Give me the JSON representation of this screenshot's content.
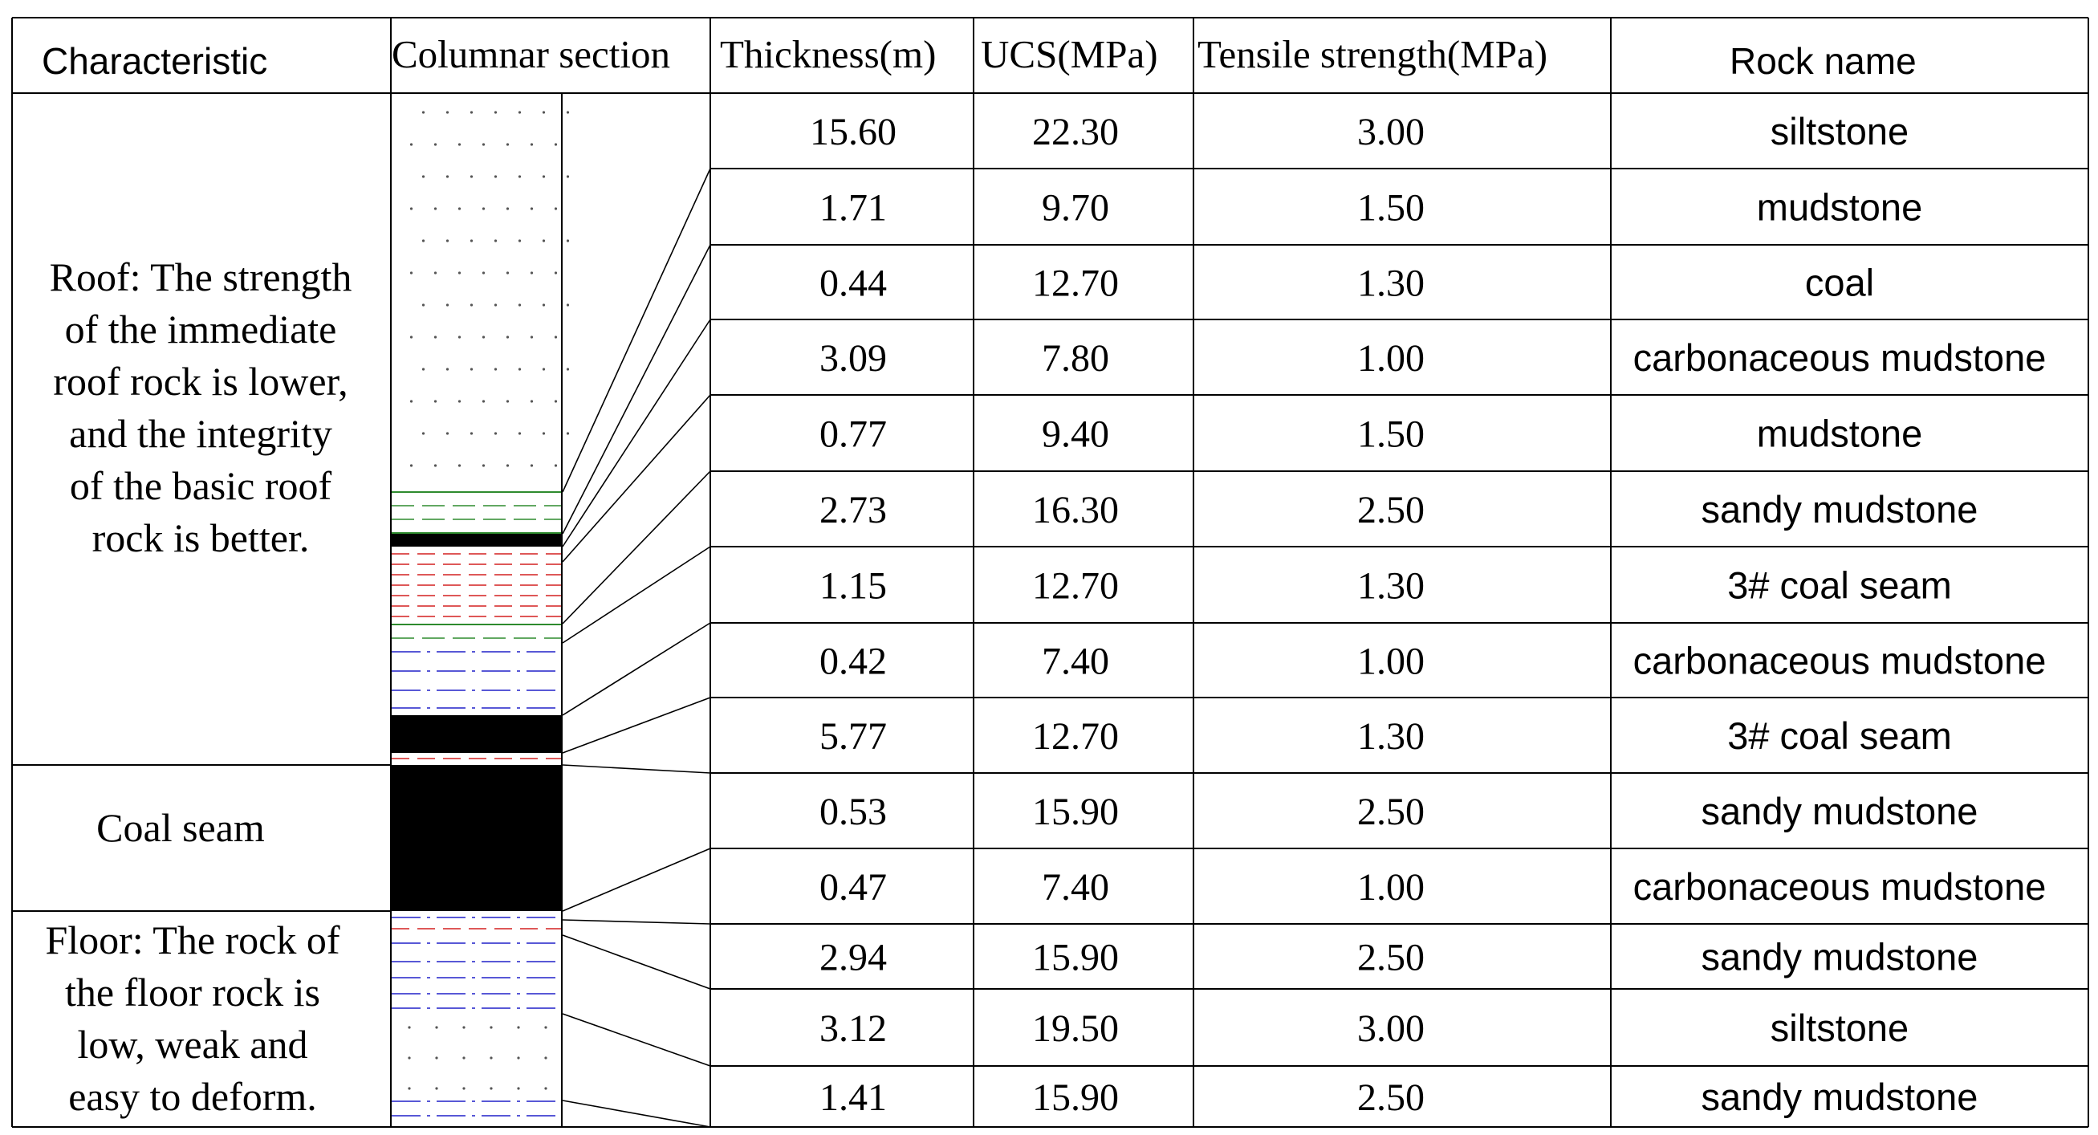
{
  "headers": {
    "characteristic": "Characteristic",
    "columnar_section": "Columnar section",
    "thickness": "Thickness(m)",
    "ucs": "UCS(MPa)",
    "tensile": "Tensile strength(MPa)",
    "rock_name": "Rock name"
  },
  "characteristics": {
    "roof": [
      "Roof: The strength",
      "of the immediate",
      "roof rock is lower,",
      "and the integrity",
      "of the basic roof",
      "rock is better."
    ],
    "coal": [
      "Coal seam"
    ],
    "floor": [
      "Floor: The rock of",
      "the floor rock is",
      "low, weak and",
      "easy to deform."
    ]
  },
  "rows": [
    {
      "thickness": "15.60",
      "ucs": "22.30",
      "tensile": "3.00",
      "rock": "siltstone"
    },
    {
      "thickness": "1.71",
      "ucs": "9.70",
      "tensile": "1.50",
      "rock": "mudstone"
    },
    {
      "thickness": "0.44",
      "ucs": "12.70",
      "tensile": "1.30",
      "rock": "coal"
    },
    {
      "thickness": "3.09",
      "ucs": "7.80",
      "tensile": "1.00",
      "rock": "carbonaceous mudstone"
    },
    {
      "thickness": "0.77",
      "ucs": "9.40",
      "tensile": "1.50",
      "rock": "mudstone"
    },
    {
      "thickness": "2.73",
      "ucs": "16.30",
      "tensile": "2.50",
      "rock": "sandy mudstone"
    },
    {
      "thickness": "1.15",
      "ucs": "12.70",
      "tensile": "1.30",
      "rock": "3# coal seam"
    },
    {
      "thickness": "0.42",
      "ucs": "7.40",
      "tensile": "1.00",
      "rock": "carbonaceous mudstone"
    },
    {
      "thickness": "5.77",
      "ucs": "12.70",
      "tensile": "1.30",
      "rock": "3# coal seam"
    },
    {
      "thickness": "0.53",
      "ucs": "15.90",
      "tensile": "2.50",
      "rock": "sandy mudstone"
    },
    {
      "thickness": "0.47",
      "ucs": "7.40",
      "tensile": "1.00",
      "rock": "carbonaceous mudstone"
    },
    {
      "thickness": "2.94",
      "ucs": "15.90",
      "tensile": "2.50",
      "rock": "sandy mudstone"
    },
    {
      "thickness": "3.12",
      "ucs": "19.50",
      "tensile": "3.00",
      "rock": "siltstone"
    },
    {
      "thickness": "1.41",
      "ucs": "15.90",
      "tensile": "2.50",
      "rock": "sandy mudstone"
    }
  ],
  "colors": {
    "line": "#000000",
    "coal": "#000000",
    "mudstone_dash": "#2e8b2e",
    "carbonaceous_dash": "#d42020",
    "sandy_dash": "#2020c8",
    "dots": "#555555"
  }
}
